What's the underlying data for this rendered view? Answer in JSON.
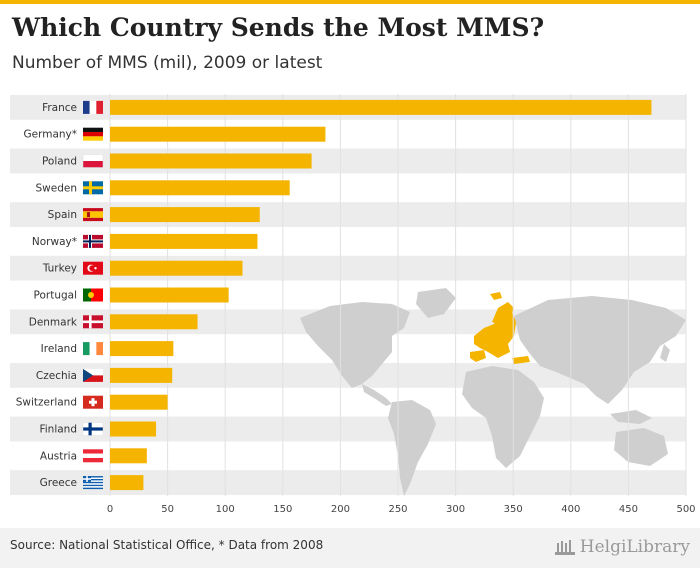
{
  "header": {
    "title": "Which Country Sends the Most MMS?",
    "subtitle": "Number of MMS (mil), 2009 or latest"
  },
  "footer": {
    "source": "Source: National Statistical Office, * Data from 2008",
    "logo": "HelgiLibrary"
  },
  "colors": {
    "bar": "#f5b400",
    "stripe": "#ececec",
    "map_land": "#cfcfcf",
    "map_highlight": "#f5b400"
  },
  "chart_data": {
    "type": "bar",
    "orientation": "horizontal",
    "title": "Which Country Sends the Most MMS?",
    "subtitle": "Number of MMS (mil), 2009 or latest",
    "categories": [
      "France",
      "Germany*",
      "Poland",
      "Sweden",
      "Spain",
      "Norway*",
      "Turkey",
      "Portugal",
      "Denmark",
      "Ireland",
      "Czechia",
      "Switzerland",
      "Finland",
      "Austria",
      "Greece"
    ],
    "values": [
      470,
      187,
      175,
      156,
      130,
      128,
      115,
      103,
      76,
      55,
      54,
      50,
      40,
      32,
      29
    ],
    "xlim": [
      0,
      500
    ],
    "xticks": [
      0,
      50,
      100,
      150,
      200,
      250,
      300,
      350,
      400,
      450,
      500
    ],
    "xlabel": "",
    "ylabel": "",
    "grid": true,
    "flags": [
      "flag-france",
      "flag-germany",
      "flag-poland",
      "flag-sweden",
      "flag-spain",
      "flag-norway",
      "flag-turkey",
      "flag-portugal",
      "flag-denmark",
      "flag-ireland",
      "flag-czechia",
      "flag-switzerland",
      "flag-finland",
      "flag-austria",
      "flag-greece"
    ]
  }
}
